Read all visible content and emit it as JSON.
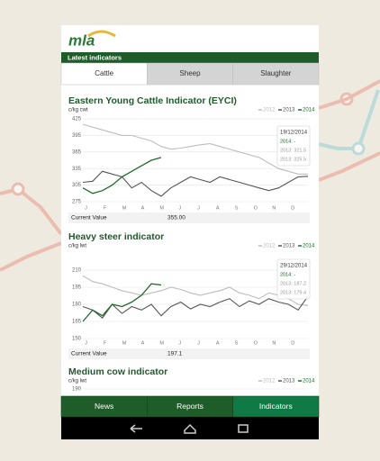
{
  "header": {
    "logo": "mla",
    "section": "Latest indicators"
  },
  "tabs": [
    "Cattle",
    "Sheep",
    "Slaughter"
  ],
  "charts": [
    {
      "type": "line",
      "title": "Eastern Young Cattle Indicator (EYCI)",
      "unit": "c/kg cwt",
      "categories": [
        "J",
        "F",
        "M",
        "A",
        "M",
        "J",
        "J",
        "A",
        "S",
        "O",
        "N",
        "D"
      ],
      "ylim": [
        275,
        425
      ],
      "yticks": [
        425,
        395,
        365,
        335,
        305,
        275
      ],
      "series": [
        {
          "name": "2012",
          "color": "#bdbdbd",
          "values": [
            415,
            410,
            405,
            400,
            395,
            395,
            390,
            385,
            375,
            370,
            372,
            375,
            378,
            380,
            375,
            370,
            365,
            360,
            355,
            345,
            335,
            330,
            325,
            325
          ]
        },
        {
          "name": "2013",
          "color": "#555555",
          "values": [
            310,
            312,
            330,
            325,
            320,
            300,
            310,
            295,
            285,
            300,
            310,
            320,
            315,
            310,
            320,
            315,
            310,
            305,
            300,
            295,
            300,
            310,
            320,
            321
          ]
        },
        {
          "name": "2014",
          "color": "#1f6b2a",
          "values": [
            300,
            290,
            295,
            305,
            320,
            330,
            340,
            350,
            355
          ]
        }
      ],
      "tooltip": [
        "19/12/2014",
        "2014: -",
        "2013: 321.5",
        "2013: 325.5"
      ],
      "current_label": "Current Value",
      "current_value": "355.00"
    },
    {
      "type": "line",
      "title": "Heavy steer indicator",
      "unit": "c/kg lwt",
      "categories": [
        "J",
        "F",
        "M",
        "A",
        "M",
        "J",
        "J",
        "A",
        "S",
        "O",
        "N",
        "D"
      ],
      "ylim": [
        150,
        210
      ],
      "yticks": [
        210,
        195,
        180,
        165,
        150
      ],
      "series": [
        {
          "name": "2012",
          "color": "#bdbdbd",
          "values": [
            205,
            200,
            198,
            195,
            192,
            190,
            188,
            190,
            192,
            195,
            193,
            190,
            188,
            190,
            192,
            195,
            190,
            188,
            185,
            190,
            188,
            185,
            180,
            179
          ]
        },
        {
          "name": "2013",
          "color": "#555555",
          "values": [
            178,
            175,
            168,
            180,
            172,
            178,
            175,
            180,
            170,
            178,
            182,
            176,
            180,
            178,
            182,
            185,
            178,
            183,
            180,
            185,
            182,
            180,
            175,
            187
          ]
        },
        {
          "name": "2014",
          "color": "#1f6b2a",
          "values": [
            165,
            175,
            170,
            180,
            178,
            182,
            188,
            198,
            197
          ]
        }
      ],
      "tooltip": [
        "29/12/2014",
        "2014: -",
        "2013: 187.2",
        "2013: 179.4"
      ],
      "current_label": "Current Value",
      "current_value": "197.1"
    },
    {
      "type": "line",
      "title": "Medium cow indicator",
      "unit": "c/kg lwt",
      "ylim": [
        150,
        190
      ],
      "yticks": [
        190
      ],
      "series": [
        {
          "name": "2012",
          "color": "#bdbdbd",
          "values": []
        },
        {
          "name": "2013",
          "color": "#555555",
          "values": []
        },
        {
          "name": "2014",
          "color": "#1f6b2a",
          "values": []
        }
      ]
    }
  ],
  "nav": [
    "News",
    "Reports",
    "Indicators"
  ]
}
